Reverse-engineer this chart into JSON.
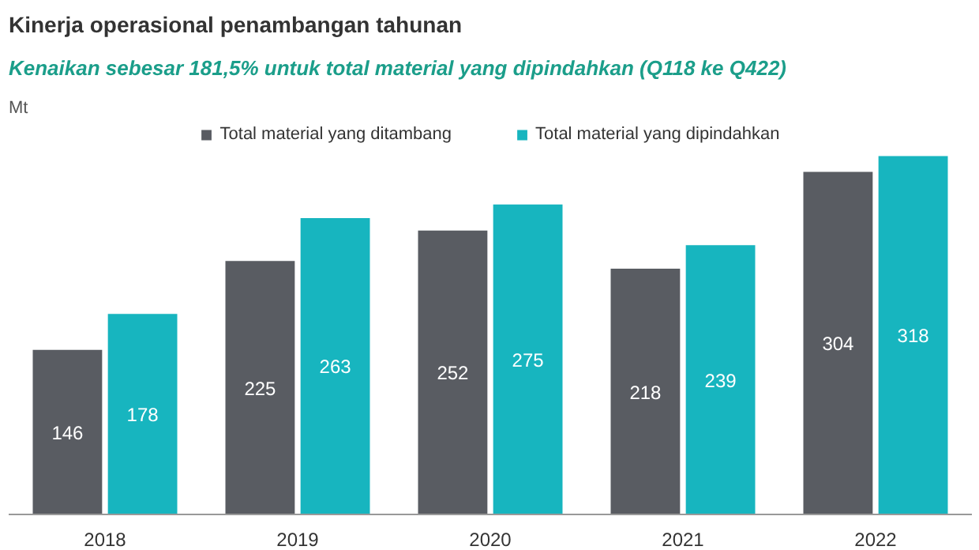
{
  "chart_data": {
    "type": "bar",
    "title": "Kinerja operasional penambangan tahunan",
    "subtitle": "Kenaikan sebesar 181,5% untuk total material yang dipindahkan (Q118 ke Q422)",
    "ylabel": "Mt",
    "categories": [
      "2018",
      "2019",
      "2020",
      "2021",
      "2022"
    ],
    "series": [
      {
        "name": "Total material yang ditambang",
        "color": "#595c62",
        "values": [
          146,
          225,
          252,
          218,
          304
        ]
      },
      {
        "name": "Total material yang dipindahkan",
        "color": "#17b5bf",
        "values": [
          178,
          263,
          275,
          239,
          318
        ]
      }
    ],
    "ylim": [
      0,
      345
    ],
    "data_labels": true,
    "legend": "top",
    "grid": false
  }
}
